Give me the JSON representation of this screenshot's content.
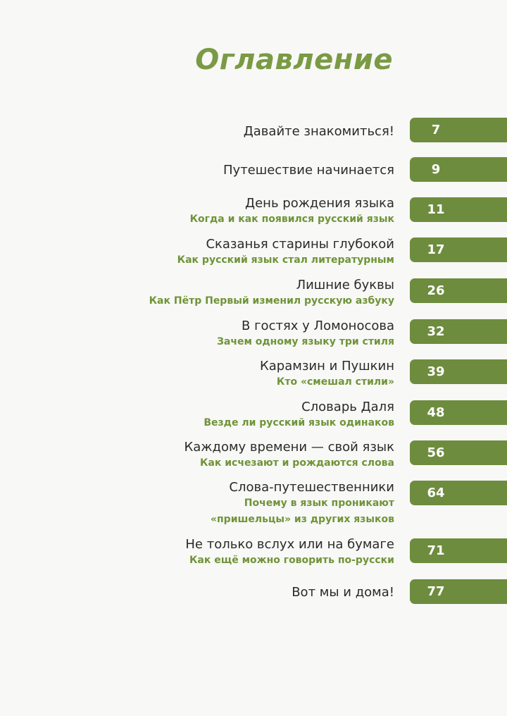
{
  "toc": {
    "title": "Оглавление",
    "entries": [
      {
        "title": "Давайте знакомиться!",
        "page": "7"
      },
      {
        "title": "Путешествие начинается",
        "page": "9"
      },
      {
        "title": "День рождения языка",
        "subtitle": "Когда и как появился русский язык",
        "page": "11"
      },
      {
        "title": "Сказанья старины глубокой",
        "subtitle": "Как русский язык стал литературным",
        "page": "17"
      },
      {
        "title": "Лишние буквы",
        "subtitle": "Как Пётр Первый изменил русскую азбуку",
        "page": "26"
      },
      {
        "title": "В гостях у Ломоносова",
        "subtitle": "Зачем одному языку три стиля",
        "page": "32"
      },
      {
        "title": "Карамзин и Пушкин",
        "subtitle": "Кто «смешал стили»",
        "page": "39"
      },
      {
        "title": "Словарь Даля",
        "subtitle": "Везде ли русский язык одинаков",
        "page": "48"
      },
      {
        "title": "Каждому времени — свой язык",
        "subtitle": "Как исчезают и рождаются слова",
        "page": "56"
      },
      {
        "title": "Слова-путешественники",
        "subtitle_line1": "Почему в язык проникают",
        "subtitle_line2": "«пришельцы» из других языков",
        "page": "64"
      },
      {
        "title": "Не только вслух или на бумаге",
        "subtitle": "Как ещё можно говорить по-русски",
        "page": "71"
      },
      {
        "title": "Вот мы и дома!",
        "page": "77"
      }
    ]
  },
  "colors": {
    "accent": "#6e8c3e",
    "subtitle": "#6f9438",
    "text": "#2a2a2a"
  }
}
